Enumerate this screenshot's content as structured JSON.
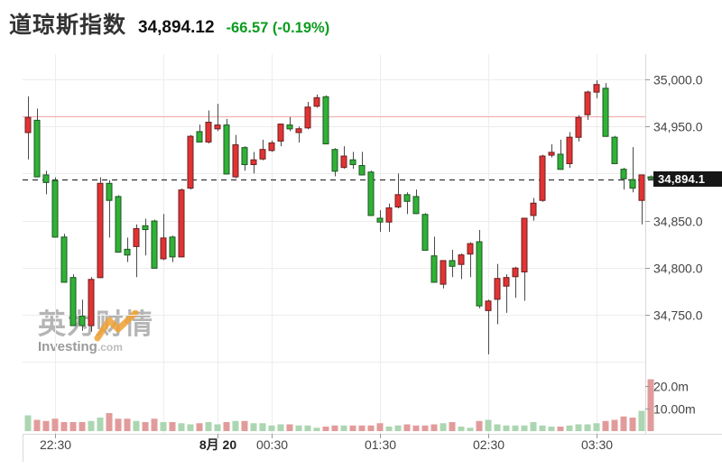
{
  "header": {
    "title": "道琼斯指数",
    "price": "34,894.12",
    "change": "-66.57 (-0.19%)"
  },
  "watermark": {
    "cn": "英为财情",
    "en_bold": "Investing",
    "en_light": ".com"
  },
  "price_tag": {
    "value": "34,894.1"
  },
  "colors": {
    "up_candle": "#e23333",
    "down_candle": "#2fb236",
    "up_volume": "#abd6b1",
    "down_volume": "#e29b9b",
    "wick": "#4a4a4a",
    "body_stroke": "rgba(25,25,25,0.6)",
    "prev_close_line": "#f0a8a8",
    "current_price_line": "#333333",
    "grid": "#ededed",
    "border": "#d9d9d9",
    "tick": "#999999",
    "axis_text": "#444444",
    "bold_axis_text": "#222222",
    "change_text": "#0c9c20",
    "tag_bg": "#161616",
    "tag_text": "#ffffff"
  },
  "chart_data": {
    "type": "candlestick+volume",
    "instrument": "道琼斯指数",
    "interval": "5min",
    "current_price": 34894.1,
    "previous_close": 34960.7,
    "y_axis": {
      "range": [
        34692,
        35027
      ],
      "gridline_prices": [
        35000,
        34950,
        34900,
        34850,
        34800,
        34750,
        34700
      ],
      "labels": [
        {
          "price": 35000,
          "text": "35,000.0"
        },
        {
          "price": 34950,
          "text": "34,950.0"
        },
        {
          "price": 34850,
          "text": "34,850.0"
        },
        {
          "price": 34800,
          "text": "34,800.0"
        },
        {
          "price": 34750,
          "text": "34,750.0"
        }
      ]
    },
    "volume_axis": {
      "unit": "m",
      "labels": [
        {
          "value": 20,
          "text": "20.0m"
        },
        {
          "value": 10,
          "text": "10.00m"
        }
      ]
    },
    "x_axis": {
      "gridline_indices": [
        3,
        15,
        21,
        27,
        39,
        51,
        63
      ],
      "ticks": [
        {
          "i": 3,
          "label": "22:30",
          "bold": false
        },
        {
          "i": 21,
          "label": "8月 20",
          "bold": true
        },
        {
          "i": 27,
          "label": "00:30",
          "bold": false
        },
        {
          "i": 39,
          "label": "01:30",
          "bold": false
        },
        {
          "i": 51,
          "label": "02:30",
          "bold": false
        },
        {
          "i": 63,
          "label": "03:30",
          "bold": false
        }
      ]
    },
    "columns": [
      "time",
      "open",
      "high",
      "low",
      "close",
      "volume_m"
    ],
    "candles": [
      [
        "22:15",
        34943,
        34982,
        34915,
        34960,
        7
      ],
      [
        "22:20",
        34957,
        34969,
        34896,
        34896,
        5
      ],
      [
        "22:25",
        34899,
        34903,
        34878,
        34890,
        4.5
      ],
      [
        "22:30",
        34893,
        34896,
        34832,
        34832,
        5.5
      ],
      [
        "22:35",
        34833,
        34836,
        34784,
        34784,
        4
      ],
      [
        "22:40",
        34790,
        34793,
        34738,
        34738,
        4
      ],
      [
        "22:45",
        34749,
        34766,
        34733,
        34738,
        4
      ],
      [
        "22:50",
        34738,
        34790,
        34732,
        34788,
        4.5
      ],
      [
        "22:55",
        34789,
        34896,
        34789,
        34890,
        6
      ],
      [
        "23:00",
        34890,
        34893,
        34832,
        34871,
        8
      ],
      [
        "23:05",
        34876,
        34877,
        34816,
        34816,
        5.5
      ],
      [
        "23:10",
        34820,
        34832,
        34806,
        34813,
        5.5
      ],
      [
        "23:15",
        34822,
        34846,
        34790,
        34842,
        4.5
      ],
      [
        "23:20",
        34845,
        34852,
        34813,
        34840,
        4
      ],
      [
        "23:25",
        34850,
        34851,
        34799,
        34799,
        5.5
      ],
      [
        "23:30",
        34809,
        34857,
        34808,
        34832,
        4
      ],
      [
        "23:35",
        34833,
        34834,
        34806,
        34811,
        4
      ],
      [
        "23:40",
        34811,
        34884,
        34811,
        34883,
        3.5
      ],
      [
        "23:45",
        34884,
        34941,
        34883,
        34940,
        3
      ],
      [
        "23:50",
        34945,
        34952,
        34933,
        34933,
        3.5
      ],
      [
        "23:55",
        34933,
        34967,
        34932,
        34955,
        4
      ],
      [
        "00:00",
        34947,
        34974,
        34945,
        34952,
        3
      ],
      [
        "00:05",
        34952,
        34958,
        34899,
        34899,
        4
      ],
      [
        "00:10",
        34896,
        34941,
        34895,
        34931,
        4.5
      ],
      [
        "00:15",
        34928,
        34929,
        34903,
        34909,
        4.5
      ],
      [
        "00:20",
        34909,
        34923,
        34900,
        34915,
        3.5
      ],
      [
        "00:25",
        34915,
        34936,
        34914,
        34926,
        3.5
      ],
      [
        "00:30",
        34924,
        34935,
        34923,
        34933,
        2.5
      ],
      [
        "00:35",
        34934,
        34953,
        34929,
        34953,
        3
      ],
      [
        "00:40",
        34952,
        34960,
        34945,
        34947,
        3
      ],
      [
        "00:45",
        34943,
        34950,
        34933,
        34948,
        2.5
      ],
      [
        "00:50",
        34948,
        34976,
        34947,
        34971,
        2.5
      ],
      [
        "00:55",
        34971,
        34984,
        34970,
        34981,
        1.5
      ],
      [
        "01:00",
        34982,
        34983,
        34931,
        34931,
        2
      ],
      [
        "01:05",
        34926,
        34927,
        34897,
        34902,
        2.5
      ],
      [
        "01:10",
        34906,
        34929,
        34905,
        34919,
        2.5
      ],
      [
        "01:15",
        34915,
        34923,
        34905,
        34909,
        2.5
      ],
      [
        "01:20",
        34909,
        34923,
        34898,
        34898,
        2.5
      ],
      [
        "01:25",
        34902,
        34903,
        34855,
        34855,
        2.5
      ],
      [
        "01:30",
        34853,
        34861,
        34838,
        34848,
        3.5
      ],
      [
        "01:35",
        34848,
        34868,
        34838,
        34864,
        2
      ],
      [
        "01:40",
        34864,
        34900,
        34863,
        34878,
        2.5
      ],
      [
        "01:45",
        34878,
        34880,
        34857,
        34870,
        3
      ],
      [
        "01:50",
        34876,
        34883,
        34857,
        34857,
        2.5
      ],
      [
        "01:55",
        34857,
        34858,
        34818,
        34818,
        2.5
      ],
      [
        "02:00",
        34813,
        34833,
        34784,
        34784,
        3
      ],
      [
        "02:05",
        34782,
        34808,
        34778,
        34808,
        3.5
      ],
      [
        "02:10",
        34808,
        34819,
        34790,
        34801,
        4
      ],
      [
        "02:15",
        34803,
        34815,
        34788,
        34814,
        2
      ],
      [
        "02:20",
        34814,
        34827,
        34790,
        34826,
        1.5
      ],
      [
        "02:25",
        34828,
        34840,
        34757,
        34759,
        4.5
      ],
      [
        "02:30",
        34754,
        34766,
        34708,
        34765,
        5
      ],
      [
        "02:35",
        34766,
        34804,
        34740,
        34789,
        3
      ],
      [
        "02:40",
        34780,
        34793,
        34752,
        34790,
        2.5
      ],
      [
        "02:45",
        34790,
        34801,
        34768,
        34800,
        2.5
      ],
      [
        "02:50",
        34795,
        34853,
        34765,
        34853,
        2.5
      ],
      [
        "02:55",
        34855,
        34874,
        34850,
        34869,
        4
      ],
      [
        "03:00",
        34871,
        34920,
        34870,
        34919,
        2.5
      ],
      [
        "03:05",
        34919,
        34931,
        34917,
        34923,
        2
      ],
      [
        "03:10",
        34921,
        34936,
        34904,
        34904,
        2
      ],
      [
        "03:15",
        34910,
        34944,
        34906,
        34939,
        2.5
      ],
      [
        "03:20",
        34938,
        34962,
        34934,
        34960,
        3
      ],
      [
        "03:25",
        34962,
        34988,
        34957,
        34987,
        3
      ],
      [
        "03:30",
        34986,
        34999,
        34980,
        34995,
        3.5
      ],
      [
        "03:35",
        34991,
        34996,
        34939,
        34939,
        4.5
      ],
      [
        "03:40",
        34939,
        34940,
        34910,
        34910,
        5
      ],
      [
        "03:45",
        34905,
        34906,
        34883,
        34894,
        6.5
      ],
      [
        "03:50",
        34894,
        34928,
        34880,
        34884,
        6
      ],
      [
        "03:55",
        34871,
        34899,
        34846,
        34899,
        9
      ],
      [
        "04:00",
        34897,
        34898,
        34893,
        34894.1,
        23
      ]
    ]
  }
}
